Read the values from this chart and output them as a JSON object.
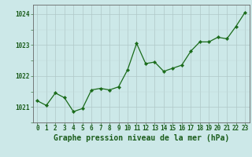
{
  "x": [
    0,
    1,
    2,
    3,
    4,
    5,
    6,
    7,
    8,
    9,
    10,
    11,
    12,
    13,
    14,
    15,
    16,
    17,
    18,
    19,
    20,
    21,
    22,
    23
  ],
  "y": [
    1021.2,
    1021.05,
    1021.45,
    1021.3,
    1020.85,
    1020.95,
    1021.55,
    1021.6,
    1021.55,
    1021.65,
    1022.2,
    1023.05,
    1022.4,
    1022.45,
    1022.15,
    1022.25,
    1022.35,
    1022.8,
    1023.1,
    1023.1,
    1023.25,
    1023.2,
    1023.6,
    1024.05
  ],
  "xlabel": "Graphe pression niveau de la mer (hPa)",
  "ylim": [
    1020.5,
    1024.3
  ],
  "yticks": [
    1021,
    1022,
    1023,
    1024
  ],
  "xticks": [
    0,
    1,
    2,
    3,
    4,
    5,
    6,
    7,
    8,
    9,
    10,
    11,
    12,
    13,
    14,
    15,
    16,
    17,
    18,
    19,
    20,
    21,
    22,
    23
  ],
  "line_color": "#1a6b1a",
  "marker_color": "#1a6b1a",
  "bg_color": "#cce8e8",
  "grid_major_color": "#b0c8c8",
  "grid_minor_color": "#c0d8d8",
  "border_color": "#666666",
  "xlabel_fontsize": 7.0,
  "tick_fontsize": 5.5,
  "xlabel_color": "#1a5c1a",
  "tick_color": "#1a5c1a"
}
